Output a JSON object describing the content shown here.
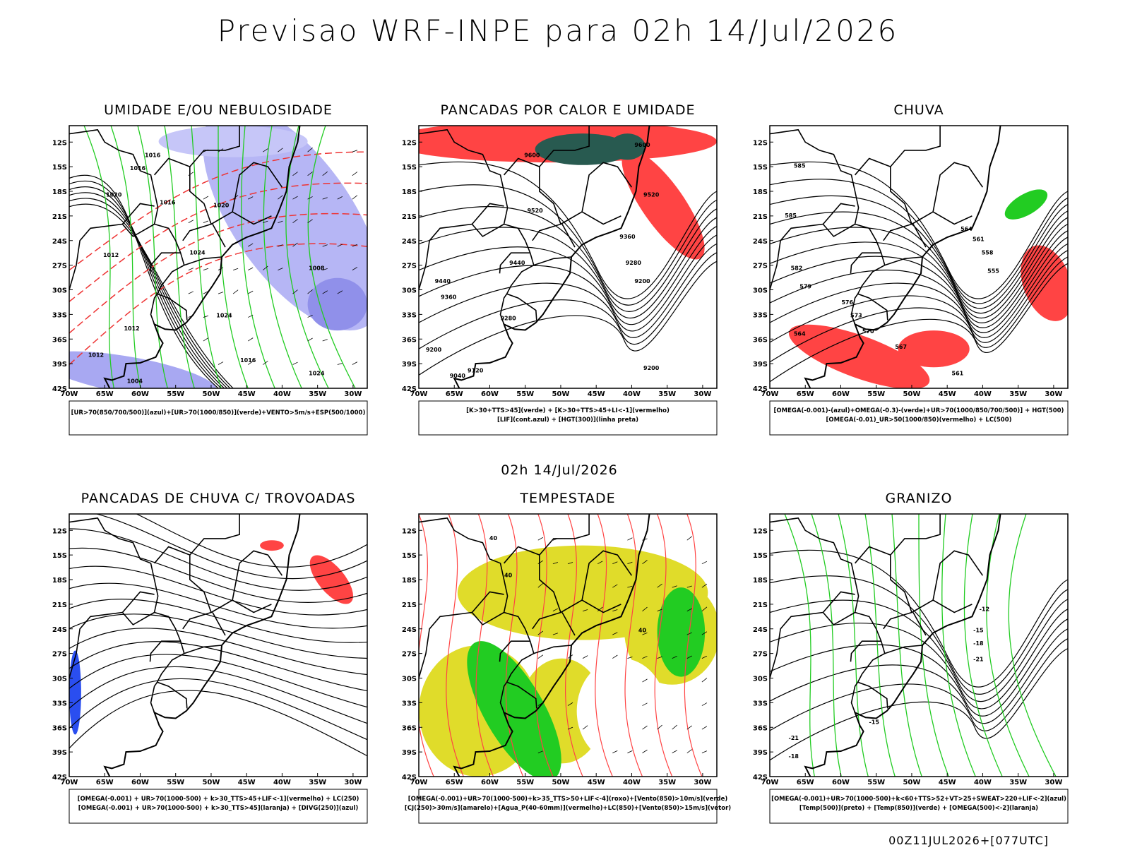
{
  "title": "Previsao WRF-INPE  para 02h 14/Jul/2026",
  "subtitle": "02h 14/Jul/2026",
  "footer": "00Z11JUL2026+[077UTC]",
  "axes": {
    "x_ticks": [
      "70W",
      "65W",
      "60W",
      "55W",
      "50W",
      "45W",
      "40W",
      "35W",
      "30W"
    ],
    "y_ticks": [
      "12S",
      "15S",
      "18S",
      "21S",
      "24S",
      "27S",
      "30S",
      "33S",
      "36S",
      "39S",
      "42S"
    ]
  },
  "panels": [
    {
      "title": "UMIDADE E/OU NEBULOSIDADE",
      "legend": [
        "[UR>70(850/700/500)](azul)+[UR>70(1000/850)](verde)+VENTO>5m/s+ESP(500/1000)"
      ],
      "contour_labels": [
        "1016",
        "1016",
        "1020",
        "1016",
        "1020",
        "1024",
        "1012",
        "1012",
        "1008",
        "1004",
        "1024",
        "1012",
        "1016",
        "1024"
      ]
    },
    {
      "title": "PANCADAS POR CALOR E UMIDADE",
      "legend": [
        "[K>30+TTS>45](verde) + [K>30+TTS>45+LI<-1](vermelho)",
        "[LIF](cont.azul) + [HGT(300)](linha preta)"
      ],
      "contour_labels": [
        "9600",
        "9600",
        "9520",
        "9520",
        "9440",
        "9360",
        "9280",
        "9200",
        "9440",
        "9360",
        "9280",
        "9200",
        "9120",
        "9040",
        "9200"
      ]
    },
    {
      "title": "CHUVA",
      "legend": [
        "[OMEGA(-0.001)-(azul)+OMEGA(-0.3)-(verde)+UR>70(1000/850/700/500)] + HGT(500)",
        "[OMEGA(-0.01)_UR>50(1000/850)(vermelho) + LC(500)"
      ],
      "contour_labels": [
        "585",
        "585",
        "582",
        "579",
        "576",
        "573",
        "570",
        "567",
        "564",
        "561",
        "558",
        "555",
        "561",
        "564"
      ]
    },
    {
      "title": "PANCADAS DE CHUVA C/ TROVOADAS",
      "legend": [
        "[OMEGA(-0.001) + UR>70(1000-500) + k>30_TTS>45+LIF<-1](vermelho) + LC(250)",
        "[OMEGA(-0.001) + UR>70(1000-500) + k>30_TTS>45](laranja) + [DIVG(250)](azul)"
      ],
      "contour_labels": []
    },
    {
      "title": "TEMPESTADE",
      "legend": [
        "[OMEGA(-0.001)+UR>70(1000-500)+k>35_TTS>50+LIF<-4](roxo)+[Vento(850)>10m/s](verde)",
        "[CJ(250)>30m/s](amarelo)+[Agua_P(40-60mm)](vermelho)+LC(850)+[Vento(850)>15m/s](vetor)"
      ],
      "contour_labels": [
        "40",
        "40",
        "40"
      ]
    },
    {
      "title": "GRANIZO",
      "legend": [
        "[OMEGA(-0.001)+UR>70(1000-500)+k<60+TTS>52+VT>25+SWEAT>220+LIF<-2](azul)",
        "[Temp(500)](preto) + [Temp(850)](verde) + [OMEGA(500)<-2](laranja)"
      ],
      "contour_labels": [
        "-12",
        "-15",
        "-18",
        "-21",
        "-15",
        "-18",
        "-21"
      ]
    }
  ]
}
